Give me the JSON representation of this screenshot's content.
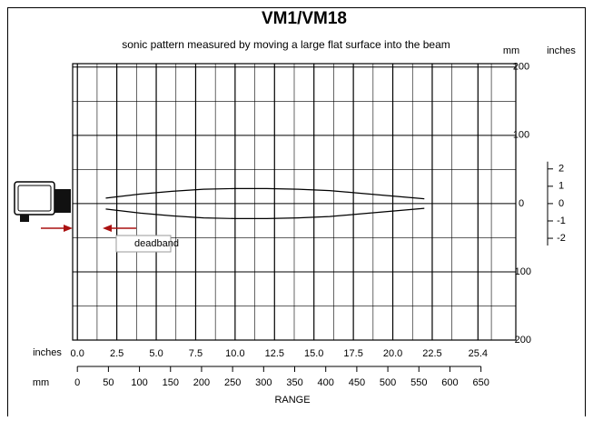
{
  "chart_data": {
    "type": "line",
    "title": "VM1/VM18",
    "subtitle": "sonic pattern measured by moving a large flat surface into the beam",
    "xlabel": "RANGE",
    "x_unit_label": "inches",
    "x2_unit_label": "mm",
    "y_unit_label": "mm",
    "y2_unit_label": "inches",
    "annotation": "deadband",
    "x": [
      1.8,
      4,
      6,
      8,
      10,
      12,
      14,
      16,
      18,
      20,
      22
    ],
    "series": [
      {
        "color": "#000000",
        "values": [
          8,
          14,
          18,
          21,
          22,
          22,
          21,
          19,
          15,
          11,
          7
        ]
      },
      {
        "color": "#000000",
        "values": [
          -8,
          -14,
          -18,
          -21,
          -22,
          -22,
          -21,
          -19,
          -15,
          -11,
          -7
        ]
      }
    ],
    "xlim": [
      -0.3,
      27.8
    ],
    "xticks": [
      {
        "value": 0,
        "label": "0.0"
      },
      2.5,
      {
        "value": 5,
        "label": "5.0"
      },
      7.5,
      {
        "value": 10,
        "label": "10.0"
      },
      12.5,
      {
        "value": 15,
        "label": "15.0"
      },
      17.5,
      {
        "value": 20,
        "label": "20.0"
      },
      22.5,
      25.4
    ],
    "x2lim": [
      -7.6,
      706.1
    ],
    "x2ticks": [
      0,
      50,
      100,
      150,
      200,
      250,
      300,
      350,
      400,
      450,
      500,
      550,
      600,
      650
    ],
    "ylim": [
      -200,
      205
    ],
    "yticks": [
      -200,
      -100,
      0,
      100,
      200
    ],
    "y2lim": [
      -7.87,
      8.07
    ],
    "y2ticks": [
      -2,
      -1,
      0,
      1,
      2
    ],
    "grid": true
  }
}
